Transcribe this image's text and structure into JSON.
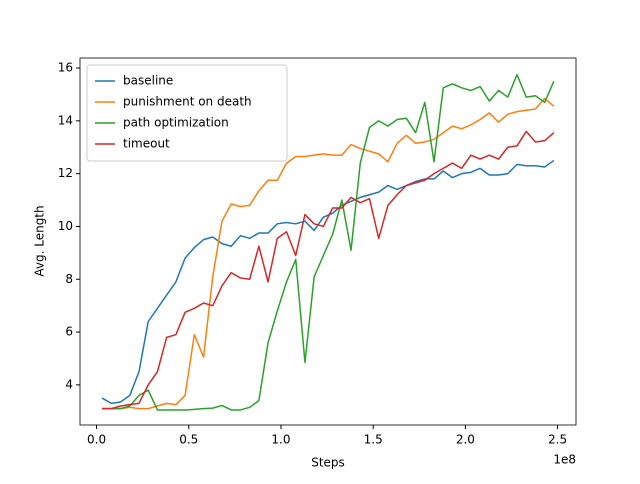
{
  "chart_data": {
    "type": "line",
    "xlabel": "Steps",
    "ylabel": "Avg. Length",
    "x_offset_label": "1e8",
    "x": [
      3000000,
      8000000,
      13000000,
      18000000,
      23000000,
      28000000,
      33000000,
      38000000,
      43000000,
      48000000,
      53000000,
      58000000,
      63000000,
      68000000,
      73000000,
      78000000,
      83000000,
      88000000,
      93000000,
      98000000,
      103000000,
      108000000,
      113000000,
      118000000,
      123000000,
      128000000,
      133000000,
      138000000,
      143000000,
      148000000,
      153000000,
      158000000,
      163000000,
      168000000,
      173000000,
      178000000,
      183000000,
      188000000,
      193000000,
      198000000,
      203000000,
      208000000,
      213000000,
      218000000,
      223000000,
      228000000,
      233000000,
      238000000,
      243000000,
      248000000
    ],
    "series": [
      {
        "name": "baseline",
        "color": "#1f77b4",
        "values": [
          3.5,
          3.3,
          3.35,
          3.6,
          4.5,
          6.4,
          6.9,
          7.4,
          7.9,
          8.8,
          9.2,
          9.5,
          9.6,
          9.35,
          9.25,
          9.65,
          9.55,
          9.75,
          9.75,
          10.1,
          10.15,
          10.1,
          10.2,
          9.85,
          10.35,
          10.5,
          10.8,
          10.95,
          11.1,
          11.2,
          11.3,
          11.55,
          11.4,
          11.55,
          11.7,
          11.8,
          11.8,
          12.1,
          11.85,
          12.0,
          12.05,
          12.2,
          11.95,
          11.95,
          12.0,
          12.35,
          12.3,
          12.3,
          12.25,
          12.5
        ]
      },
      {
        "name": "punishment on death",
        "color": "#ff7f0e",
        "values": [
          3.1,
          3.1,
          3.1,
          3.15,
          3.1,
          3.1,
          3.2,
          3.3,
          3.25,
          3.6,
          5.9,
          5.05,
          8.1,
          10.2,
          10.85,
          10.75,
          10.8,
          11.35,
          11.75,
          11.75,
          12.4,
          12.65,
          12.65,
          12.7,
          12.75,
          12.7,
          12.7,
          13.1,
          12.95,
          12.85,
          12.75,
          12.45,
          13.15,
          13.45,
          13.15,
          13.2,
          13.3,
          13.55,
          13.8,
          13.7,
          13.85,
          14.05,
          14.3,
          13.95,
          14.25,
          14.35,
          14.4,
          14.45,
          14.85,
          14.55
        ]
      },
      {
        "name": "path optimization",
        "color": "#2ca02c",
        "values": [
          3.1,
          3.1,
          3.1,
          3.2,
          3.6,
          3.8,
          3.05,
          3.05,
          3.05,
          3.05,
          3.07,
          3.1,
          3.12,
          3.22,
          3.05,
          3.05,
          3.15,
          3.4,
          5.6,
          6.8,
          7.9,
          8.75,
          4.85,
          8.1,
          8.9,
          9.7,
          11.0,
          9.1,
          12.4,
          13.75,
          14.0,
          13.8,
          14.05,
          14.1,
          13.55,
          14.7,
          12.45,
          15.25,
          15.4,
          15.25,
          15.15,
          15.3,
          14.75,
          15.15,
          14.9,
          15.75,
          14.9,
          14.95,
          14.7,
          15.5
        ]
      },
      {
        "name": "timeout",
        "color": "#d62728",
        "values": [
          3.1,
          3.1,
          3.2,
          3.25,
          3.3,
          4.0,
          4.5,
          5.8,
          5.9,
          6.75,
          6.9,
          7.1,
          7.0,
          7.75,
          8.25,
          8.05,
          8.0,
          9.25,
          7.9,
          9.55,
          9.8,
          8.9,
          10.45,
          10.1,
          10.0,
          10.7,
          10.7,
          11.1,
          10.9,
          11.05,
          9.55,
          10.8,
          11.2,
          11.55,
          11.65,
          11.75,
          12.0,
          12.2,
          12.4,
          12.2,
          12.7,
          12.55,
          12.7,
          12.55,
          13.0,
          13.05,
          13.6,
          13.2,
          13.25,
          13.55
        ]
      }
    ],
    "xlim": [
      -9000000,
      260000000
    ],
    "xticks": [
      {
        "value": 0,
        "label": "0.0"
      },
      {
        "value": 50000000,
        "label": "0.5"
      },
      {
        "value": 100000000,
        "label": "1.0"
      },
      {
        "value": 150000000,
        "label": "1.5"
      },
      {
        "value": 200000000,
        "label": "2.0"
      },
      {
        "value": 250000000,
        "label": "2.5"
      }
    ],
    "ylim": [
      2.48,
      16.38
    ],
    "yticks": [
      4,
      6,
      8,
      10,
      12,
      14,
      16
    ],
    "legend": "upper left"
  }
}
